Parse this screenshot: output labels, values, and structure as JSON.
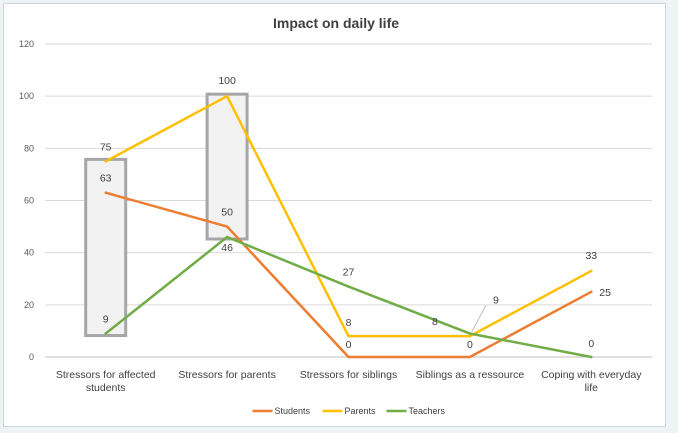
{
  "chart_data": {
    "type": "line",
    "title": "Impact on daily life",
    "categories": [
      "Stressors for affected students",
      "Stressors for parents",
      "Stressors for siblings",
      "Siblings as a ressource",
      "Coping with everyday life"
    ],
    "category_lines": [
      [
        "Stressors for affected",
        "students"
      ],
      [
        "Stressors for parents"
      ],
      [
        "Stressors for siblings"
      ],
      [
        "Siblings as a ressource"
      ],
      [
        "Coping with everyday",
        "life"
      ]
    ],
    "yticks": [
      "0",
      "20",
      "40",
      "60",
      "80",
      "100",
      "120"
    ],
    "ylim": [
      0,
      120
    ],
    "grid": true,
    "legend_position": "bottom",
    "series": [
      {
        "name": "Students",
        "color": "#ed7d31",
        "values": [
          63,
          50,
          0,
          0,
          25
        ]
      },
      {
        "name": "Parents",
        "color": "#ffc000",
        "values": [
          75,
          100,
          8,
          8,
          33
        ]
      },
      {
        "name": "Teachers",
        "color": "#70ad47",
        "values": [
          9,
          46,
          27,
          9,
          0
        ]
      }
    ],
    "data_labels": [
      "75",
      "63",
      "9",
      "100",
      "50",
      "46",
      "27",
      "8",
      "0",
      "8",
      "0",
      "9",
      "33",
      "25",
      "0"
    ],
    "highlight_color": "#a6a6a6"
  }
}
